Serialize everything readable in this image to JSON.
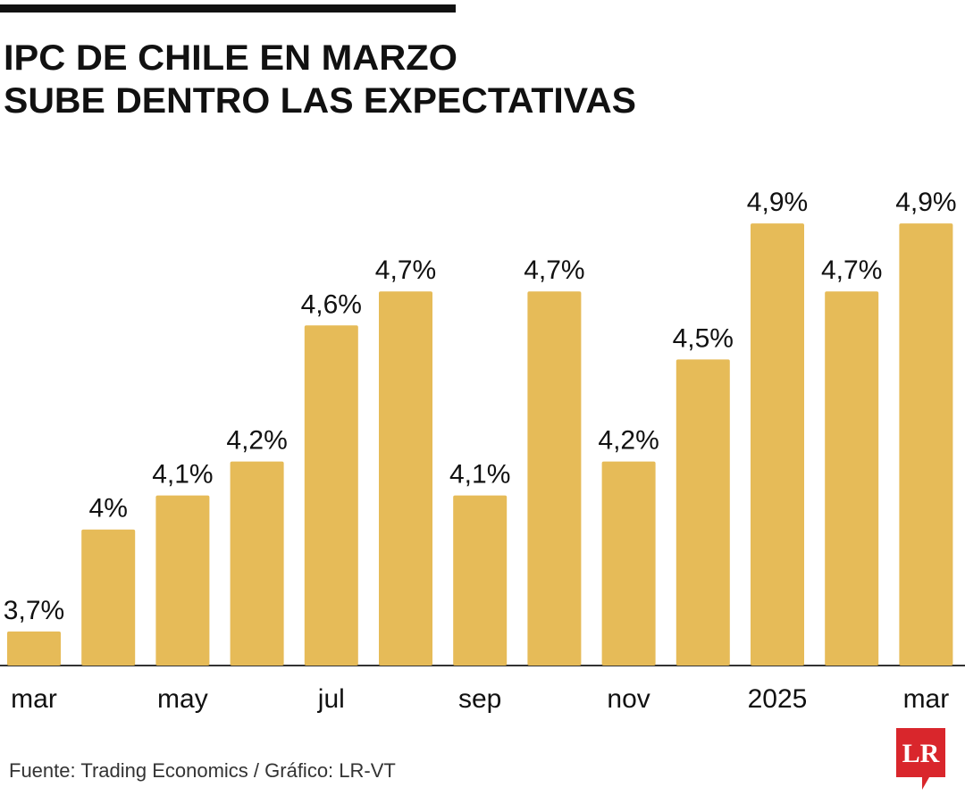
{
  "chart_data": {
    "type": "bar",
    "title": [
      "IPC DE CHILE EN MARZO",
      "SUBE DENTRO LAS EXPECTATIVAS"
    ],
    "categories": [
      "mar",
      null,
      "may",
      null,
      "jul",
      null,
      "sep",
      null,
      "nov",
      null,
      "2025",
      null,
      "mar"
    ],
    "values": [
      3.7,
      4,
      4.1,
      4.2,
      4.6,
      4.7,
      4.1,
      4.7,
      4.2,
      4.5,
      4.9,
      4.7,
      4.9
    ],
    "value_labels": [
      "3,7%",
      "4%",
      "4,1%",
      "4,2%",
      "4,6%",
      "4,7%",
      "4,1%",
      "4,7%",
      "4,2%",
      "4,5%",
      "4,9%",
      "4,7%",
      "4,9%"
    ],
    "color": "#e6bb58",
    "ylim": [
      3.6,
      5.0
    ],
    "source": "Fuente: Trading Economics / Gráfico: LR-VT",
    "logo": "LR"
  }
}
